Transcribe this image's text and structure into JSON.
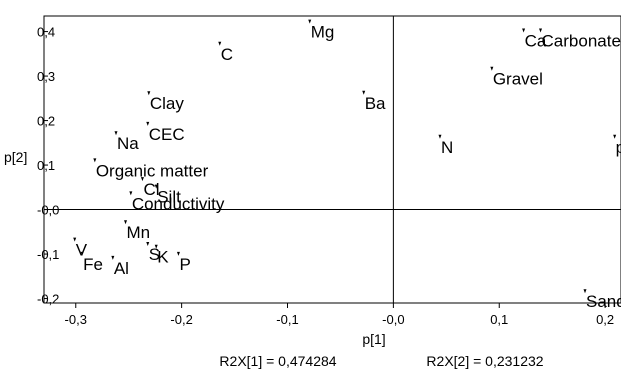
{
  "chart_data": {
    "type": "scatter",
    "title": "",
    "xlabel": "p[1]",
    "ylabel": "p[2]",
    "xlim": [
      -0.33,
      0.215
    ],
    "ylim": [
      -0.21,
      0.435
    ],
    "xticks": [
      {
        "value": -0.3,
        "label": "-0,3"
      },
      {
        "value": -0.2,
        "label": "-0,2"
      },
      {
        "value": -0.1,
        "label": "-0,1"
      },
      {
        "value": 0.0,
        "label": "-0,0"
      },
      {
        "value": 0.1,
        "label": "0,1"
      },
      {
        "value": 0.2,
        "label": "0,2"
      }
    ],
    "yticks": [
      {
        "value": 0.4,
        "label": "0,4"
      },
      {
        "value": 0.3,
        "label": "0,3"
      },
      {
        "value": 0.2,
        "label": "0,2"
      },
      {
        "value": 0.1,
        "label": "0,1"
      },
      {
        "value": 0.0,
        "label": "-0,0"
      },
      {
        "value": -0.1,
        "label": "-0,1"
      },
      {
        "value": -0.2,
        "label": "-0,2"
      }
    ],
    "grid": false,
    "points": [
      {
        "label": "Mg",
        "x": -0.079,
        "y": 0.418
      },
      {
        "label": "C",
        "x": -0.164,
        "y": 0.368
      },
      {
        "label": "Ca",
        "x": 0.123,
        "y": 0.398
      },
      {
        "label": "Carbonate",
        "x": 0.139,
        "y": 0.398
      },
      {
        "label": "Gravel",
        "x": 0.093,
        "y": 0.312
      },
      {
        "label": "Clay",
        "x": -0.231,
        "y": 0.257
      },
      {
        "label": "Ba",
        "x": -0.028,
        "y": 0.258
      },
      {
        "label": "CEC",
        "x": -0.232,
        "y": 0.188
      },
      {
        "label": "Na",
        "x": -0.262,
        "y": 0.167
      },
      {
        "label": "N",
        "x": 0.044,
        "y": 0.159
      },
      {
        "label": "pH",
        "x": 0.209,
        "y": 0.159
      },
      {
        "label": "Organic matter",
        "x": -0.282,
        "y": 0.106
      },
      {
        "label": "Cl",
        "x": -0.237,
        "y": 0.064
      },
      {
        "label": "Silt",
        "x": -0.224,
        "y": 0.047
      },
      {
        "label": "Conductivity",
        "x": -0.248,
        "y": 0.032
      },
      {
        "label": "Mn",
        "x": -0.253,
        "y": -0.033
      },
      {
        "label": "V",
        "x": -0.301,
        "y": -0.072
      },
      {
        "label": "S",
        "x": -0.232,
        "y": -0.082
      },
      {
        "label": "K",
        "x": -0.224,
        "y": -0.088
      },
      {
        "label": "Fe",
        "x": -0.294,
        "y": -0.104
      },
      {
        "label": "Al",
        "x": -0.265,
        "y": -0.113
      },
      {
        "label": "P",
        "x": -0.203,
        "y": -0.104
      },
      {
        "label": "Sand",
        "x": 0.181,
        "y": -0.188
      }
    ]
  },
  "footer": {
    "r2x1": "R2X[1] = 0,474284",
    "r2x2": "R2X[2] = 0,231232"
  }
}
